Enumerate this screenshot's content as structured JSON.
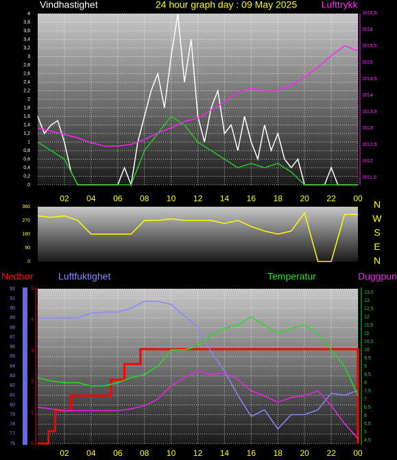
{
  "chart_data": [
    {
      "type": "line",
      "title": "24 hour graph day : 09 May 2025",
      "xlim": [
        0,
        24
      ],
      "xticks": [
        {
          "value": 2,
          "label": "02"
        },
        {
          "value": 4,
          "label": "04"
        },
        {
          "value": 6,
          "label": "06"
        },
        {
          "value": 8,
          "label": "08"
        },
        10,
        12,
        14,
        16,
        18,
        20,
        22,
        {
          "value": 24,
          "label": "00"
        }
      ],
      "ylim": [
        0,
        4
      ],
      "yticks": [
        0,
        {
          "value": 0.2,
          "label": "0,2"
        },
        {
          "value": 0.4,
          "label": "0,4"
        },
        {
          "value": 0.6,
          "label": "0,6"
        },
        {
          "value": 0.8,
          "label": "0,8"
        },
        1,
        {
          "value": 1.2,
          "label": "1,2"
        },
        {
          "value": 1.4,
          "label": "1,4"
        },
        {
          "value": 1.6,
          "label": "1,6"
        },
        {
          "value": 1.8,
          "label": "1,8"
        },
        2,
        {
          "value": 2.2,
          "label": "2,2"
        },
        {
          "value": 2.4,
          "label": "2,4"
        },
        {
          "value": 2.6,
          "label": "2,6"
        },
        {
          "value": 2.8,
          "label": "2,8"
        },
        3,
        {
          "value": 3.2,
          "label": "3,2"
        },
        {
          "value": 3.4,
          "label": "3,4"
        },
        {
          "value": 3.6,
          "label": "3,6"
        },
        {
          "value": 3.8,
          "label": "3,8"
        },
        4
      ],
      "y2lim": [
        1011.27,
        1016.48
      ],
      "y2ticks": [
        {
          "value": 1011.5,
          "label": "1011,5"
        },
        1012,
        {
          "value": 1012.5,
          "label": "1012,5"
        },
        1013,
        {
          "value": 1013.5,
          "label": "1013,5"
        },
        1014,
        {
          "value": 1014.5,
          "label": "1014,5"
        },
        1015,
        {
          "value": 1015.5,
          "label": "1015,5"
        },
        1016,
        {
          "value": 1016.5,
          "label": "1016,5"
        }
      ],
      "grid": true,
      "series": [
        {
          "name": "Vindhastighet",
          "color": "#ffffff",
          "x": [
            0,
            0.5,
            1,
            1.5,
            2,
            2.5,
            3,
            3.5,
            4,
            4.5,
            5,
            5.5,
            6,
            6.5,
            7,
            7.5,
            8,
            8.5,
            9,
            9.5,
            10,
            10.5,
            11,
            11.5,
            12,
            12.5,
            13,
            13.5,
            14,
            14.5,
            15,
            15.5,
            16,
            16.5,
            17,
            17.5,
            18,
            18.5,
            19,
            19.5,
            20,
            20.5,
            21,
            21.5,
            22,
            22.5,
            23,
            23.5,
            24
          ],
          "values": [
            1.6,
            1.2,
            1.4,
            1.5,
            1.0,
            0.3,
            0,
            0,
            0,
            0,
            0,
            0,
            0,
            0.4,
            0,
            1.0,
            1.6,
            2.2,
            2.6,
            1.8,
            3.0,
            4.0,
            2.4,
            3.4,
            1.6,
            1.0,
            1.8,
            2.2,
            1.2,
            1.4,
            0.8,
            1.6,
            1.0,
            0.6,
            1.4,
            0.8,
            1.2,
            0.6,
            0.4,
            0.6,
            0,
            0,
            0,
            0,
            0.4,
            0,
            0,
            0,
            0
          ]
        },
        {
          "color": "#22cc22",
          "x": [
            0,
            1,
            2,
            3,
            4,
            5,
            6,
            7,
            8,
            9,
            10,
            11,
            12,
            13,
            14,
            15,
            16,
            17,
            18,
            19,
            20,
            21,
            22,
            23,
            24
          ],
          "values": [
            1.0,
            0.8,
            0.6,
            0,
            0,
            0,
            0,
            0,
            0.8,
            1.2,
            1.6,
            1.4,
            1.0,
            0.8,
            0.6,
            0.4,
            0.5,
            0.4,
            0.5,
            0.3,
            0,
            0,
            0,
            0,
            0
          ]
        },
        {
          "name": "Lufttrykk",
          "color": "#ff22ff",
          "axis": "y2",
          "x": [
            0,
            1,
            2,
            3,
            4,
            5,
            6,
            7,
            8,
            9,
            10,
            11,
            12,
            13,
            14,
            15,
            16,
            17,
            18,
            19,
            20,
            21,
            22,
            23,
            24
          ],
          "values": [
            1013.0,
            1012.9,
            1012.8,
            1012.7,
            1012.55,
            1012.45,
            1012.45,
            1012.5,
            1012.65,
            1012.85,
            1013.0,
            1013.2,
            1013.3,
            1013.55,
            1013.8,
            1014.1,
            1014.2,
            1014.15,
            1014.15,
            1014.3,
            1014.55,
            1014.85,
            1015.2,
            1015.5,
            1015.35
          ]
        }
      ]
    },
    {
      "type": "line",
      "xlim": [
        0,
        24
      ],
      "ylim": [
        0,
        360
      ],
      "yticks": [
        0,
        90,
        180,
        270,
        360
      ],
      "direction_labels": [
        "N",
        "W",
        "S",
        "E",
        "N"
      ],
      "series": [
        {
          "color": "#ffff00",
          "x": [
            0,
            1,
            2,
            3,
            4,
            5,
            6,
            7,
            8,
            9,
            10,
            11,
            12,
            13,
            14,
            15,
            16,
            17,
            18,
            19,
            20,
            21,
            22,
            23,
            24
          ],
          "values": [
            300,
            290,
            300,
            270,
            180,
            180,
            180,
            180,
            270,
            270,
            280,
            270,
            270,
            270,
            250,
            270,
            230,
            200,
            180,
            200,
            320,
            0,
            0,
            310,
            310
          ]
        }
      ]
    },
    {
      "type": "line",
      "xlim": [
        0,
        24
      ],
      "xticks": [
        {
          "value": 2,
          "label": "02"
        },
        {
          "value": 4,
          "label": "04"
        },
        {
          "value": 6,
          "label": "06"
        },
        {
          "value": 8,
          "label": "08"
        },
        10,
        12,
        14,
        16,
        18,
        20,
        22,
        {
          "value": 24,
          "label": "00"
        }
      ],
      "ylim": [
        76,
        92
      ],
      "yticks": [
        76,
        77,
        78,
        79,
        80,
        81,
        82,
        83,
        84,
        85,
        86,
        87,
        88,
        89,
        90,
        91,
        92
      ],
      "y2lim": [
        4.29,
        13.71
      ],
      "y2ticks": [
        {
          "value": 4.5,
          "label": "4,5"
        },
        5,
        {
          "value": 5.5,
          "label": "5,5"
        },
        6,
        {
          "value": 6.5,
          "label": "6,5"
        },
        7,
        {
          "value": 7.5,
          "label": "7,5"
        },
        8,
        {
          "value": 8.5,
          "label": "8,5"
        },
        9,
        {
          "value": 9.5,
          "label": "9,5"
        },
        10,
        {
          "value": 10.5,
          "label": "10,5"
        },
        11,
        {
          "value": 11.5,
          "label": "11,5"
        },
        12,
        {
          "value": 12.5,
          "label": "12,5"
        },
        13,
        {
          "value": 13.5,
          "label": "13,5"
        }
      ],
      "y3lim": [
        0,
        5
      ],
      "y3ticks": [
        0,
        1,
        2,
        3,
        4,
        5
      ],
      "grid": true,
      "series": [
        {
          "name": "Nedbør",
          "color": "#ff0000",
          "axis": "y3",
          "step": true,
          "x": [
            0,
            0.8,
            1.3,
            2.5,
            5.5,
            6.5,
            7.7,
            24
          ],
          "values": [
            0,
            0.4,
            1.06,
            1.55,
            2.06,
            2.57,
            3.05,
            0
          ]
        },
        {
          "name": "Luftfuktighet",
          "color": "#8888ff",
          "x": [
            0,
            1,
            2,
            3,
            4,
            5,
            6,
            7,
            8,
            9,
            10,
            11,
            12,
            13,
            14,
            15,
            16,
            17,
            18,
            19,
            20,
            21,
            22,
            23,
            24
          ],
          "values": [
            89,
            89,
            89,
            89,
            89.5,
            89.6,
            89.6,
            90,
            90.7,
            90.7,
            90.4,
            89.2,
            88,
            85.5,
            83.5,
            81,
            78.8,
            79.5,
            77.5,
            79,
            79,
            79.5,
            81.2,
            81,
            81.5
          ]
        },
        {
          "name": "Temperatur",
          "color": "#22dd22",
          "axis": "y2",
          "x": [
            0,
            1,
            2,
            3,
            4,
            5,
            6,
            7,
            8,
            9,
            10,
            11,
            12,
            13,
            14,
            15,
            16,
            17,
            18,
            19,
            20,
            21,
            22,
            23,
            24
          ],
          "values": [
            8.3,
            8.1,
            8.0,
            8.0,
            7.8,
            7.8,
            8.0,
            8.3,
            8.5,
            9.0,
            10.0,
            10.0,
            10.2,
            10.9,
            11.3,
            11.5,
            12.0,
            11.5,
            11.0,
            11.3,
            11.5,
            11.0,
            10.0,
            9.0,
            7.2
          ]
        },
        {
          "name": "Duggpunkt",
          "color": "#ee22ee",
          "axis": "y2",
          "x": [
            0,
            1,
            2,
            3,
            4,
            5,
            6,
            7,
            8,
            9,
            10,
            11,
            12,
            13,
            14,
            15,
            16,
            17,
            18,
            19,
            20,
            21,
            22,
            23,
            24
          ],
          "values": [
            6.5,
            6.4,
            6.3,
            6.3,
            6.3,
            6.3,
            6.3,
            6.4,
            6.6,
            7.0,
            7.8,
            8.3,
            8.7,
            8.5,
            8.6,
            8.2,
            7.5,
            7.2,
            6.8,
            7.1,
            7.2,
            7.5,
            6.6,
            5.5,
            4.6
          ]
        }
      ]
    }
  ]
}
